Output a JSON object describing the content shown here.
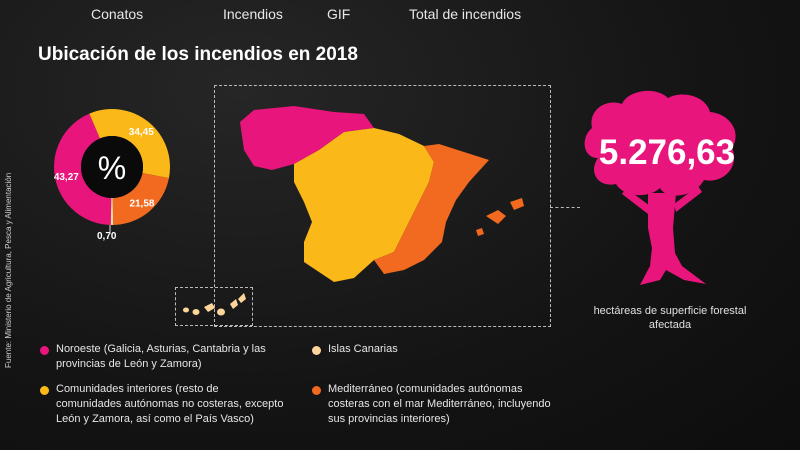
{
  "nav": [
    {
      "label": "Conatos"
    },
    {
      "label": "Incendios"
    },
    {
      "label": "GIF"
    },
    {
      "label": "Total de incendios"
    }
  ],
  "title": "Ubicación de los incendios en 2018",
  "source": "Fuente: Ministerio de Agricultura, Pesca y Alimentación",
  "chart_data": {
    "type": "pie",
    "center_label": "%",
    "slices": [
      {
        "label": "Noroeste",
        "value": 43.27,
        "value_label": "43,27",
        "color": "#e8157c"
      },
      {
        "label": "Comunidades interiores",
        "value": 34.45,
        "value_label": "34,45",
        "color": "#fbb819"
      },
      {
        "label": "Mediterráneo",
        "value": 21.58,
        "value_label": "21,58",
        "color": "#f26a1f"
      },
      {
        "label": "Islas Canarias",
        "value": 0.7,
        "value_label": "0,70",
        "color": "#fdd59a"
      }
    ]
  },
  "stat": {
    "value": "5.276,63",
    "caption": "hectáreas de superficie forestal afectada",
    "color": "#e8157c"
  },
  "legend": [
    {
      "text": "Noroeste (Galicia, Asturias, Cantabria y las provincias de León y Zamora)",
      "color": "#e8157c"
    },
    {
      "text": "Islas Canarias",
      "color": "#fdd59a"
    },
    {
      "text": "Comunidades interiores (resto de comunidades autónomas no costeras, excepto León y Zamora, así como el País Vasco)",
      "color": "#fbb819"
    },
    {
      "text": "Mediterráneo (comunidades autónomas costeras con el mar Mediterráneo, incluyendo sus provincias interiores)",
      "color": "#f26a1f"
    }
  ]
}
